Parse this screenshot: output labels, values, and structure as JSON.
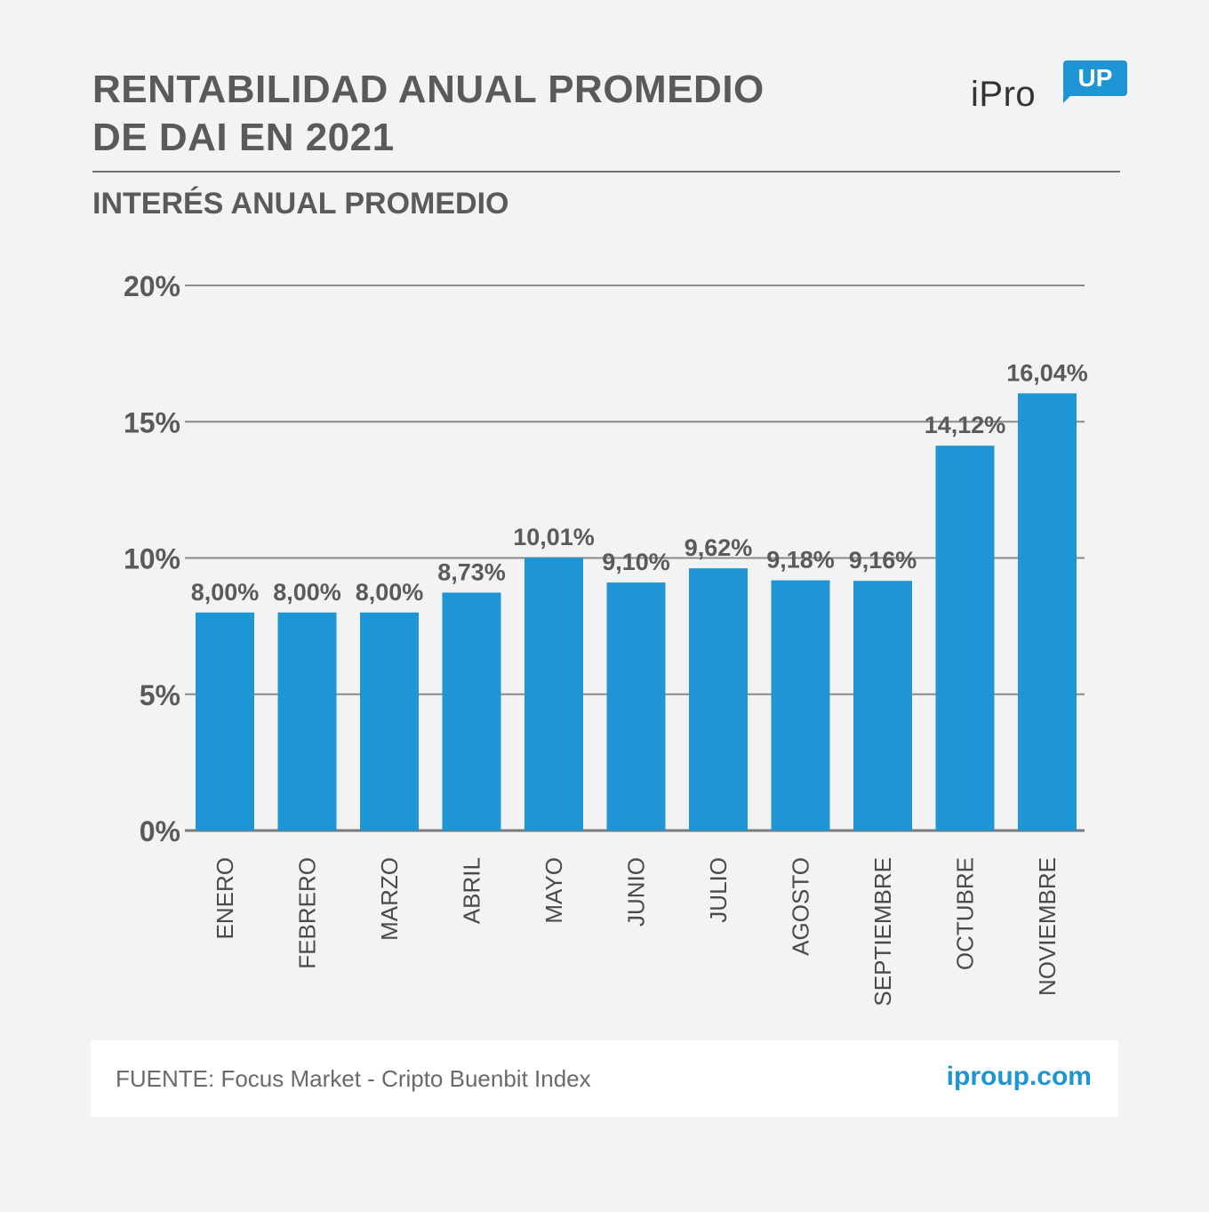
{
  "header": {
    "title_line1": "RENTABILIDAD ANUAL PROMEDIO",
    "title_line2": "DE DAI EN 2021",
    "subtitle": "INTERÉS ANUAL PROMEDIO"
  },
  "logo": {
    "text": "iPro",
    "badge": "UP"
  },
  "footer": {
    "source": "FUENTE: Focus Market - Cripto Buenbit Index",
    "site": "iproup.com"
  },
  "colors": {
    "bar": "#1e95d4",
    "accent": "#1e95d4",
    "text": "#5a5a5c",
    "grid": "#8a8a8c"
  },
  "chart_data": {
    "type": "bar",
    "categories": [
      "ENERO",
      "FEBRERO",
      "MARZO",
      "ABRIL",
      "MAYO",
      "JUNIO",
      "JULIO",
      "AGOSTO",
      "SEPTIEMBRE",
      "OCTUBRE",
      "NOVIEMBRE"
    ],
    "values": [
      8.0,
      8.0,
      8.0,
      8.73,
      10.01,
      9.1,
      9.62,
      9.18,
      9.16,
      14.12,
      16.04
    ],
    "data_labels": [
      "8,00%",
      "8,00%",
      "8,00%",
      "8,73%",
      "10,01%",
      "9,10%",
      "9,62%",
      "9,18%",
      "9,16%",
      "14,12%",
      "16,04%"
    ],
    "yticks": [
      "0%",
      "5%",
      "10%",
      "15%",
      "20%"
    ],
    "ytick_values": [
      0,
      5,
      10,
      15,
      20
    ],
    "ylim": [
      0,
      20
    ],
    "title": "INTERÉS ANUAL PROMEDIO",
    "grid": true,
    "legend": false
  }
}
